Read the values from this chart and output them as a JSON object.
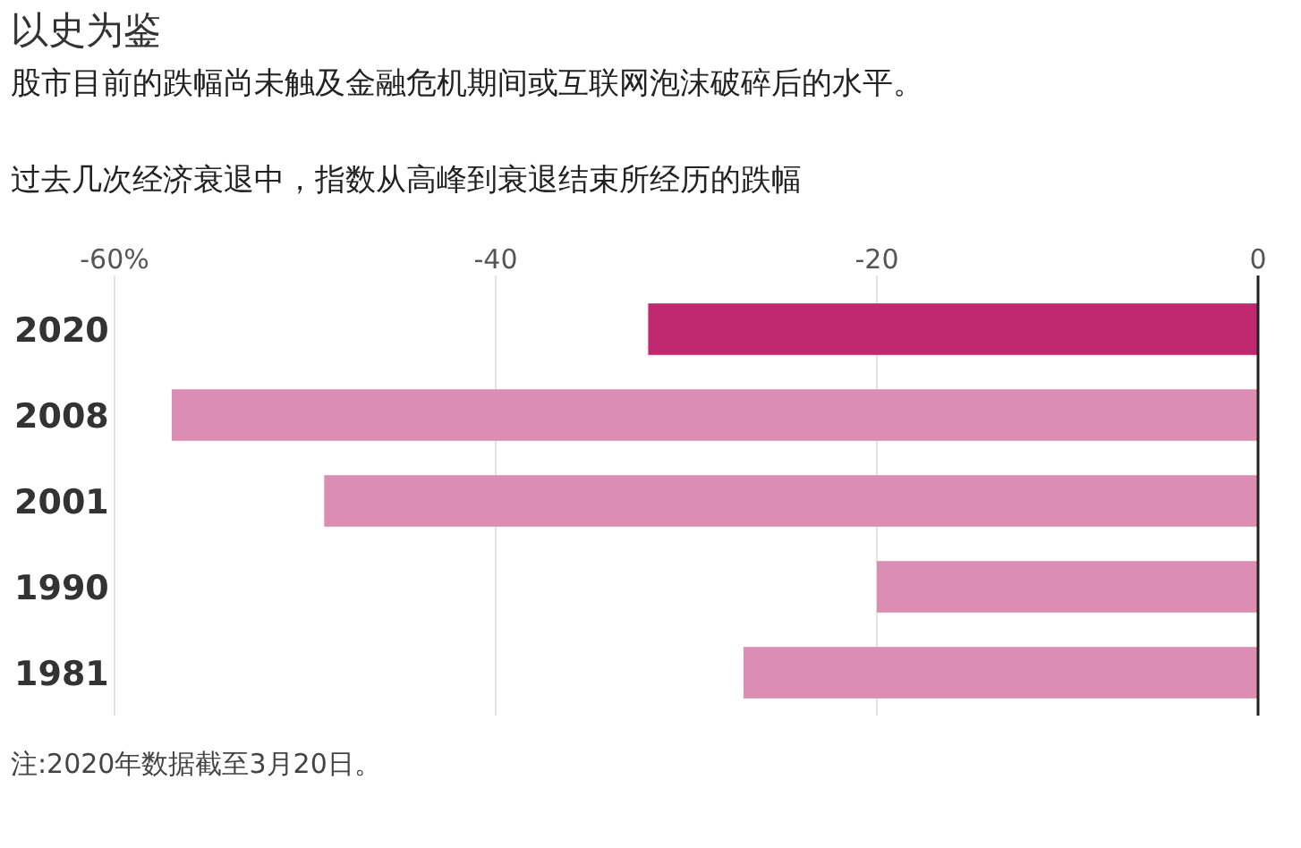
{
  "chart_data": {
    "type": "bar",
    "orientation": "horizontal",
    "title": "以史为鉴",
    "subtitle": "股市目前的跌幅尚未触及金融危机期间或互联网泡沫破碎后的水平。",
    "xlabel": "过去几次经济衰退中，指数从高峰到衰退结束所经历的跌幅",
    "categories": [
      "2020",
      "2008",
      "2001",
      "1990",
      "1981"
    ],
    "values": [
      -32,
      -57,
      -49,
      -20,
      -27
    ],
    "colors": [
      "#c0286f",
      "#dc8db3",
      "#dc8db3",
      "#dc8db3",
      "#dc8db3"
    ],
    "xlim": [
      -60,
      0
    ],
    "xticks": [
      {
        "value": -60,
        "label": "-60%"
      },
      -40,
      -20,
      0
    ],
    "grid": "x",
    "annotations": [
      "注:2020年数据截至3月20日。"
    ]
  }
}
